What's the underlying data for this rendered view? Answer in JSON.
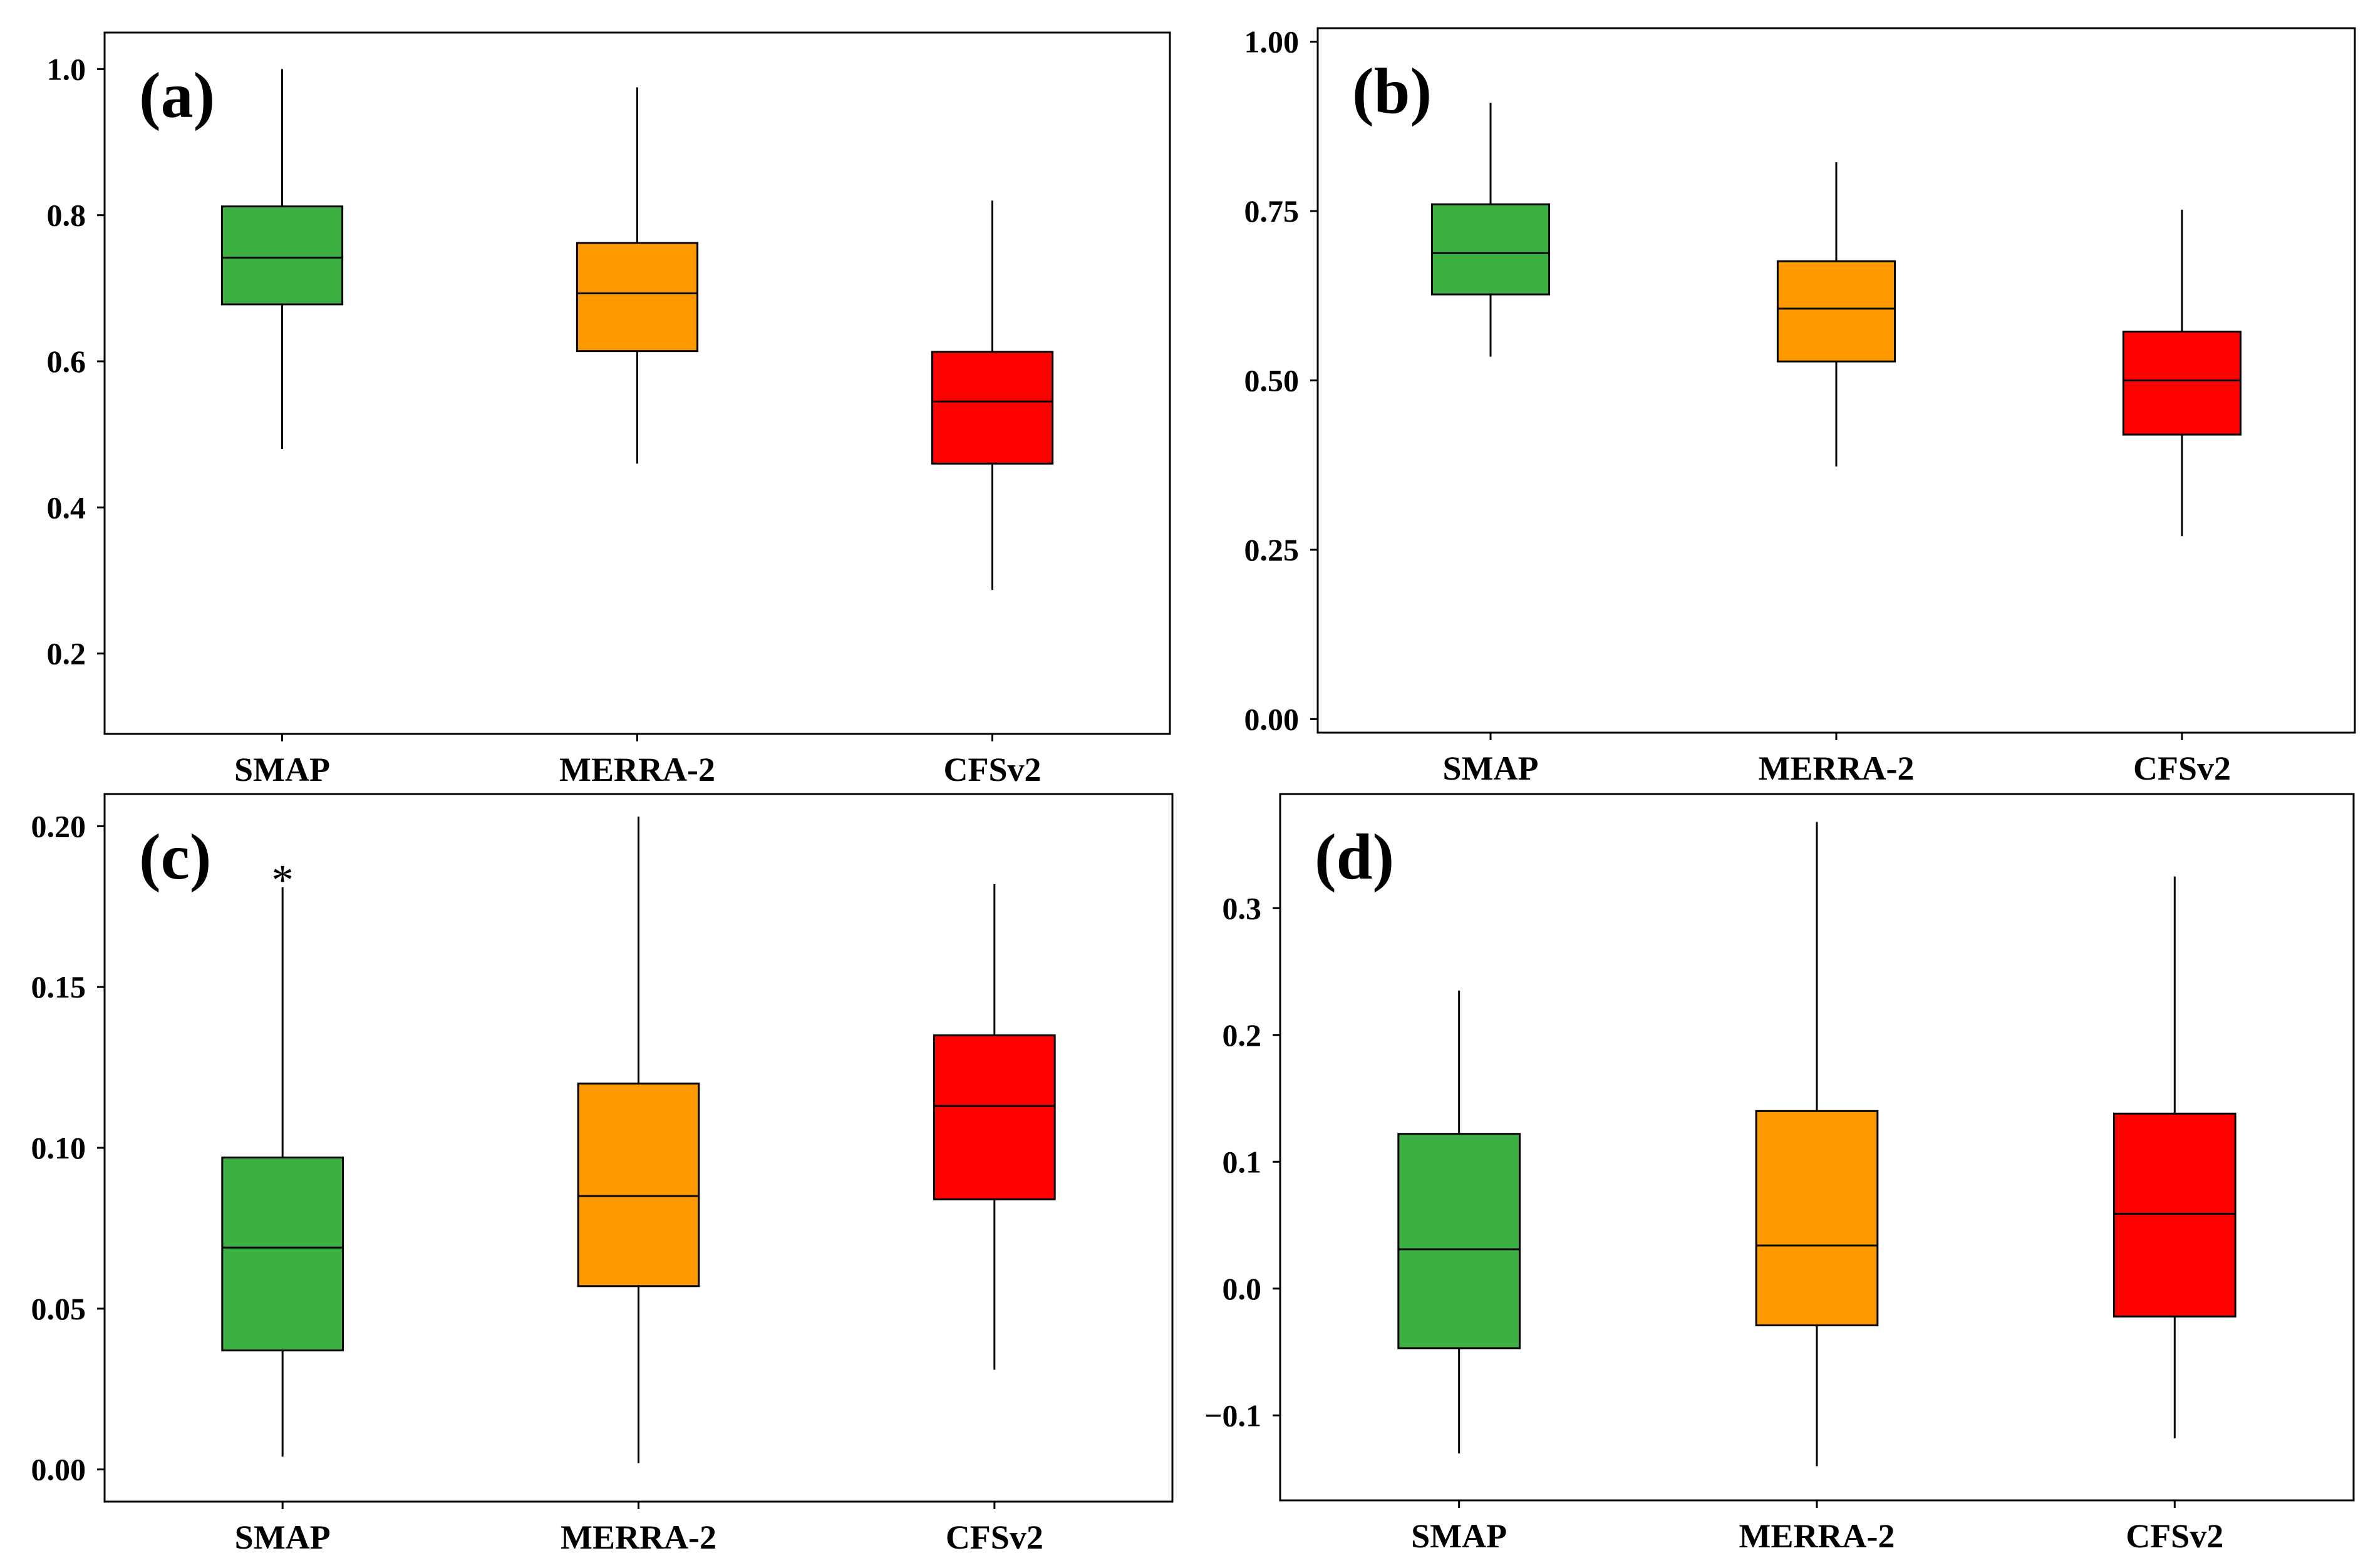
{
  "chart_data": [
    {
      "type": "box",
      "panel_label": "(a)",
      "categories": [
        "SMAP",
        "MERRA-2",
        "CFSv2"
      ],
      "ylim": [
        0.09,
        1.05
      ],
      "yticks": [
        0.2,
        0.4,
        0.6,
        0.8,
        1.0
      ],
      "ytick_labels": [
        "0.2",
        "0.4",
        "0.6",
        "0.8",
        "1.0"
      ],
      "boxes": [
        {
          "category": "SMAP",
          "min": 0.48,
          "q1": 0.678,
          "median": 0.742,
          "q3": 0.812,
          "max": 1.0,
          "color": "#3cb043"
        },
        {
          "category": "MERRA-2",
          "min": 0.46,
          "q1": 0.614,
          "median": 0.693,
          "q3": 0.762,
          "max": 0.975,
          "color": "#ff9900"
        },
        {
          "category": "CFSv2",
          "min": 0.287,
          "q1": 0.46,
          "median": 0.545,
          "q3": 0.613,
          "max": 0.82,
          "color": "#ff0000"
        }
      ],
      "outliers": []
    },
    {
      "type": "box",
      "panel_label": "(b)",
      "categories": [
        "SMAP",
        "MERRA-2",
        "CFSv2"
      ],
      "ylim": [
        -0.02,
        1.02
      ],
      "yticks": [
        0.0,
        0.25,
        0.5,
        0.75,
        1.0
      ],
      "ytick_labels": [
        "0.00",
        "0.25",
        "0.50",
        "0.75",
        "1.00"
      ],
      "boxes": [
        {
          "category": "SMAP",
          "min": 0.535,
          "q1": 0.627,
          "median": 0.688,
          "q3": 0.76,
          "max": 0.91,
          "color": "#3cb043"
        },
        {
          "category": "MERRA-2",
          "min": 0.373,
          "q1": 0.528,
          "median": 0.606,
          "q3": 0.676,
          "max": 0.822,
          "color": "#ff9900"
        },
        {
          "category": "CFSv2",
          "min": 0.27,
          "q1": 0.42,
          "median": 0.5,
          "q3": 0.572,
          "max": 0.752,
          "color": "#ff0000"
        }
      ],
      "outliers": []
    },
    {
      "type": "box",
      "panel_label": "(c)",
      "categories": [
        "SMAP",
        "MERRA-2",
        "CFSv2"
      ],
      "ylim": [
        -0.01,
        0.21
      ],
      "yticks": [
        0.0,
        0.05,
        0.1,
        0.15,
        0.2
      ],
      "ytick_labels": [
        "0.00",
        "0.05",
        "0.10",
        "0.15",
        "0.20"
      ],
      "boxes": [
        {
          "category": "SMAP",
          "min": 0.004,
          "q1": 0.037,
          "median": 0.069,
          "q3": 0.097,
          "max": 0.181,
          "color": "#3cb043"
        },
        {
          "category": "MERRA-2",
          "min": 0.002,
          "q1": 0.057,
          "median": 0.085,
          "q3": 0.12,
          "max": 0.203,
          "color": "#ff9900"
        },
        {
          "category": "CFSv2",
          "min": 0.031,
          "q1": 0.084,
          "median": 0.113,
          "q3": 0.135,
          "max": 0.182,
          "color": "#ff0000"
        }
      ],
      "outliers": [
        {
          "category": "SMAP",
          "value": 0.185,
          "symbol": "*"
        }
      ]
    },
    {
      "type": "box",
      "panel_label": "(d)",
      "categories": [
        "SMAP",
        "MERRA-2",
        "CFSv2"
      ],
      "ylim": [
        -0.167,
        0.39
      ],
      "yticks": [
        -0.1,
        0.0,
        0.1,
        0.2,
        0.3
      ],
      "ytick_labels": [
        "−0.1",
        "0.0",
        "0.1",
        "0.2",
        "0.3"
      ],
      "boxes": [
        {
          "category": "SMAP",
          "min": -0.13,
          "q1": -0.047,
          "median": 0.031,
          "q3": 0.122,
          "max": 0.235,
          "color": "#3cb043"
        },
        {
          "category": "MERRA-2",
          "min": -0.14,
          "q1": -0.029,
          "median": 0.034,
          "q3": 0.14,
          "max": 0.368,
          "color": "#ff9900"
        },
        {
          "category": "CFSv2",
          "min": -0.118,
          "q1": -0.022,
          "median": 0.059,
          "q3": 0.138,
          "max": 0.325,
          "color": "#ff0000"
        }
      ],
      "outliers": []
    }
  ]
}
